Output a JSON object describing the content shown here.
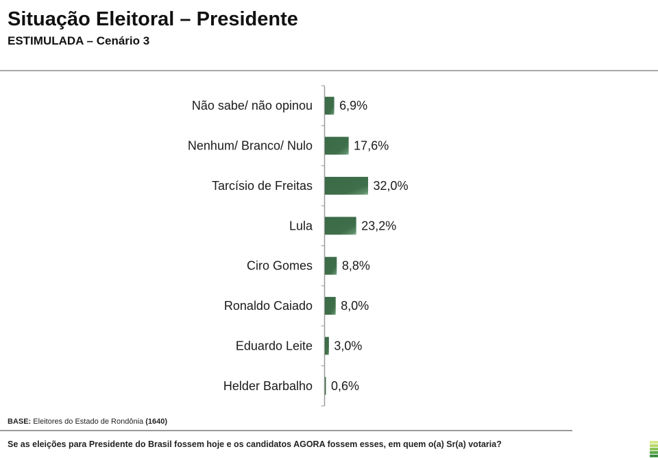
{
  "header": {
    "title": "Situação Eleitoral – Presidente",
    "subtitle": "ESTIMULADA – Cenário 3"
  },
  "chart_data": {
    "type": "bar",
    "orientation": "horizontal",
    "title": "Situação Eleitoral – Presidente",
    "subtitle": "ESTIMULADA – Cenário 3",
    "xlabel": "",
    "ylabel": "",
    "unit": "%",
    "categories": [
      "Não sabe/ não opinou",
      "Nenhum/ Branco/ Nulo",
      "Tarcísio de Freitas",
      "Lula",
      "Ciro Gomes",
      "Ronaldo Caiado",
      "Eduardo Leite",
      "Helder Barbalho"
    ],
    "values": [
      6.9,
      17.6,
      32.0,
      23.2,
      8.8,
      8.0,
      3.0,
      0.6
    ],
    "value_labels": [
      "6,9%",
      "17,6%",
      "32,0%",
      "23,2%",
      "8,8%",
      "8,0%",
      "3,0%",
      "0,6%"
    ],
    "bar_color": "#3f6f4a",
    "grid": false,
    "legend": "none"
  },
  "footer": {
    "base_label": "BASE:",
    "base_text": "Eleitores do Estado de Rondônia",
    "base_count": "(1640)",
    "question": "Se as eleições para Presidente do Brasil fossem hoje e os candidatos AGORA fossem esses, em quem o(a) Sr(a) votaria?"
  },
  "logo_colors": [
    "#d8e88a",
    "#b9d86a",
    "#8cc457",
    "#5aa84a",
    "#3f8f45"
  ]
}
